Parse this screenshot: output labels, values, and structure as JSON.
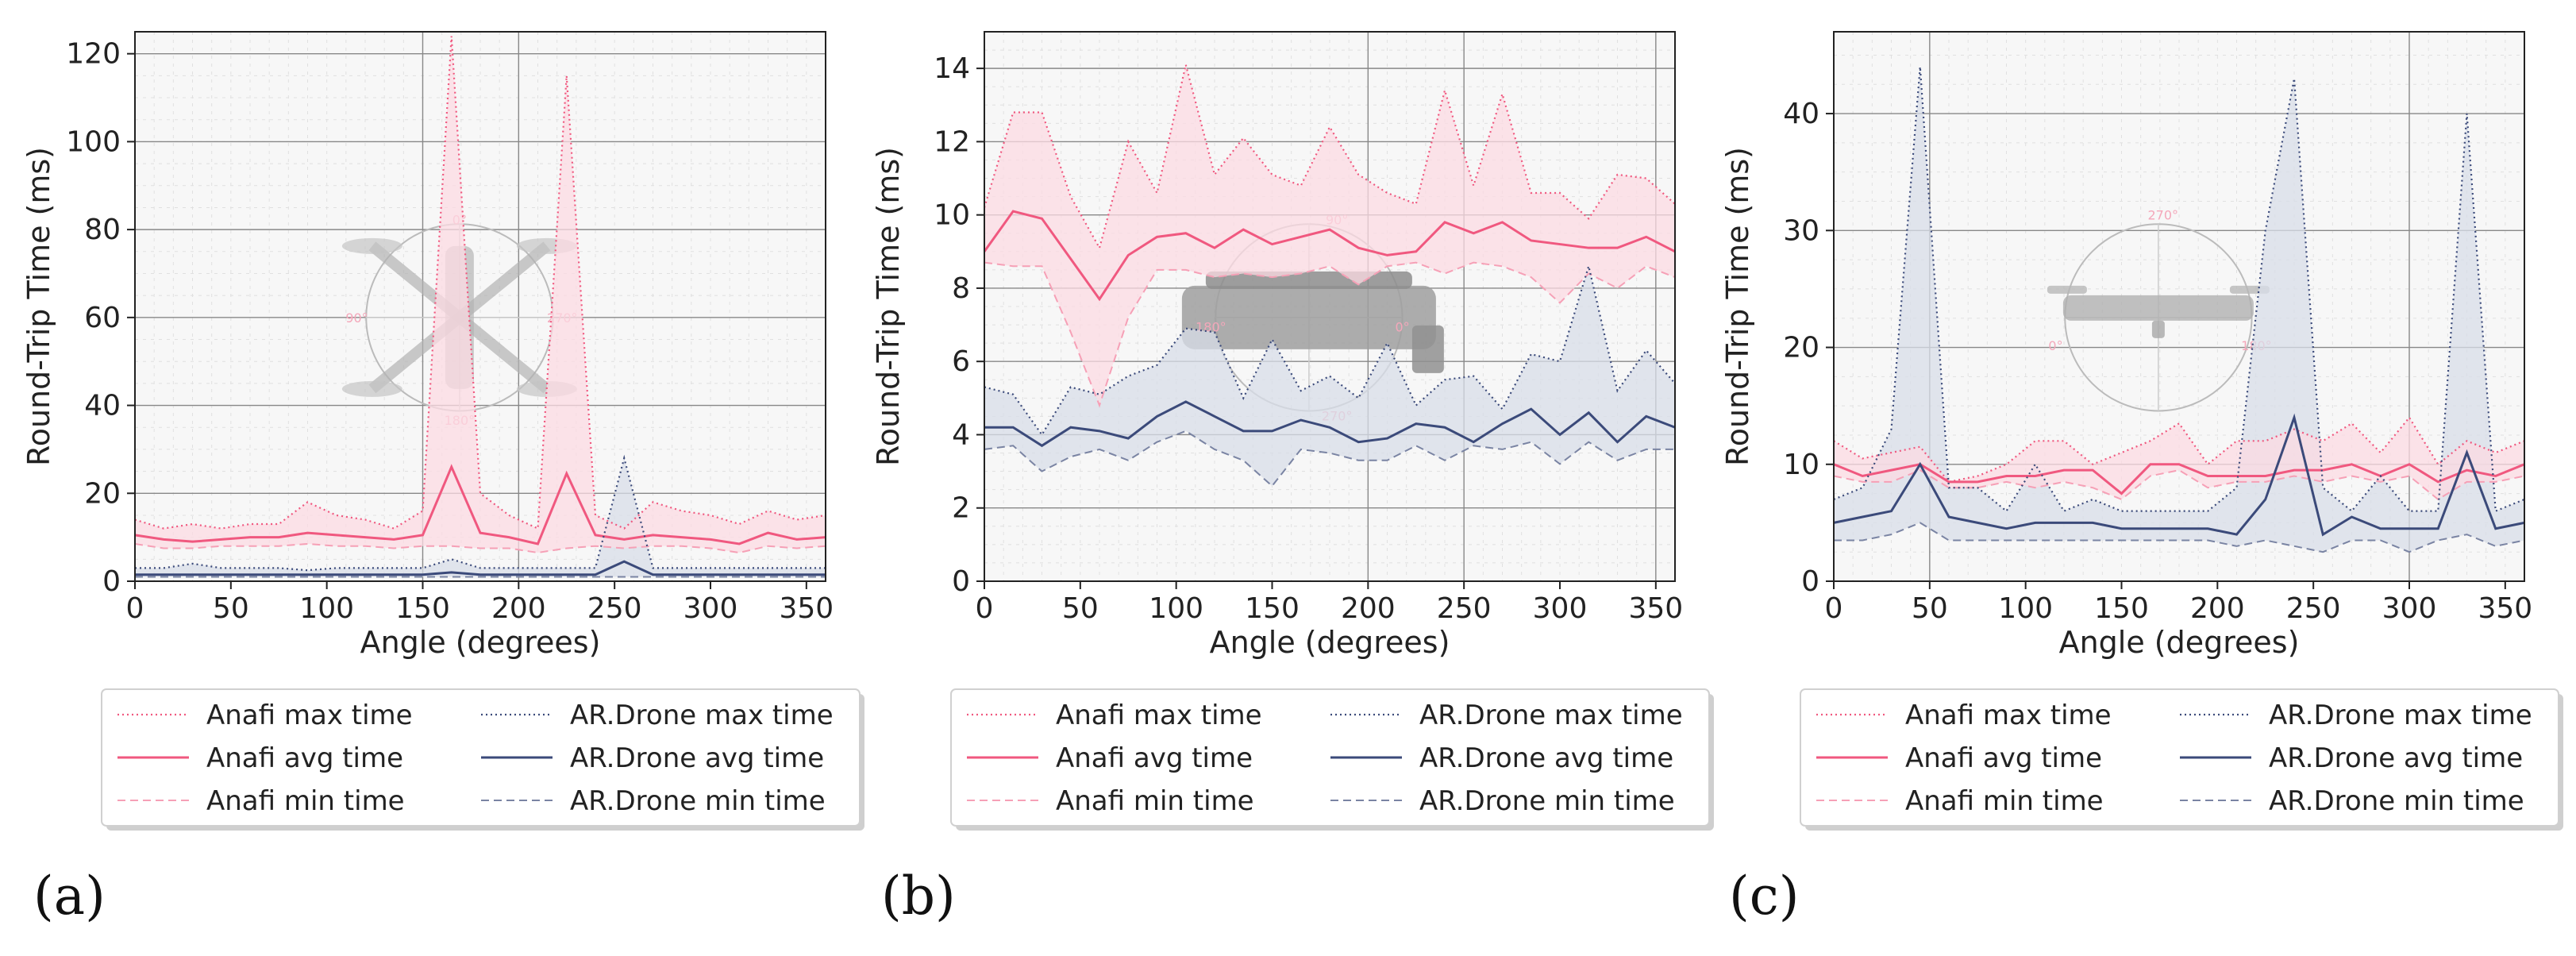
{
  "figure": {
    "panel_labels": [
      "(a)",
      "(b)",
      "(c)"
    ],
    "legend_labels": {
      "anafi_max": "Anafi max time",
      "anafi_avg": "Anafi avg time",
      "anafi_min": "Anafi min time",
      "ardrone_max": "AR.Drone max time",
      "ardrone_avg": "AR.Drone avg time",
      "ardrone_min": "AR.Drone min time"
    },
    "colors": {
      "anafi": "#f0587f",
      "anafi_fill": "#fcdbe3",
      "ardrone": "#3b4a7a",
      "ardrone_fill": "#d8dde8",
      "plot_bg": "#f7f7f7"
    },
    "inset_marks": {
      "a": [
        "0°",
        "90°",
        "270°",
        "180°"
      ],
      "b": [
        "90°",
        "180°",
        "0°",
        "270°"
      ],
      "c": [
        "270°",
        "0°",
        "180°"
      ]
    }
  },
  "chart_data": [
    {
      "type": "line",
      "panel": "(a)",
      "xlabel": "Angle (degrees)",
      "ylabel": "Round-Trip Time (ms)",
      "xlim": [
        0,
        360
      ],
      "ylim": [
        0,
        125
      ],
      "xticks": [
        0,
        50,
        100,
        150,
        200,
        250,
        300,
        350
      ],
      "yticks": [
        0,
        20,
        40,
        60,
        80,
        100,
        120
      ],
      "x": [
        0,
        15,
        30,
        45,
        60,
        75,
        90,
        105,
        120,
        135,
        150,
        165,
        180,
        195,
        210,
        225,
        240,
        255,
        270,
        285,
        300,
        315,
        330,
        345,
        360
      ],
      "series": [
        {
          "name": "Anafi max time",
          "values": [
            14,
            12,
            13,
            12,
            13,
            13,
            18,
            15,
            14,
            12,
            16,
            124,
            20,
            15,
            12,
            115,
            15,
            12,
            18,
            16,
            15,
            13,
            16,
            14,
            15
          ]
        },
        {
          "name": "Anafi avg time",
          "values": [
            10.5,
            9.5,
            9,
            9.5,
            10,
            10,
            11,
            10.5,
            10,
            9.5,
            10.5,
            26,
            11,
            10,
            8.5,
            24.5,
            10.5,
            9.5,
            10.5,
            10,
            9.5,
            8.5,
            11,
            9.5,
            10
          ]
        },
        {
          "name": "Anafi min time",
          "values": [
            8.5,
            7.5,
            7.5,
            8,
            8,
            8,
            8.5,
            8,
            8,
            7.5,
            8,
            8,
            7.5,
            7.5,
            6.5,
            7.5,
            8,
            7.5,
            8,
            8,
            7.5,
            6.5,
            8,
            7.5,
            8
          ]
        },
        {
          "name": "AR.Drone max time",
          "values": [
            3,
            3,
            4,
            3,
            3,
            3,
            2.5,
            3,
            3,
            3,
            3,
            5,
            3,
            3,
            3,
            3,
            3,
            28,
            3,
            3,
            3,
            3,
            3,
            3,
            3
          ]
        },
        {
          "name": "AR.Drone avg time",
          "values": [
            1.5,
            1.5,
            1.5,
            1.5,
            1.5,
            1.5,
            1.5,
            1.5,
            1.5,
            1.5,
            1.5,
            2,
            1.5,
            1.5,
            1.5,
            1.5,
            1.5,
            4.5,
            1.5,
            1.5,
            1.5,
            1.5,
            1.5,
            1.5,
            1.5
          ]
        },
        {
          "name": "AR.Drone min time",
          "values": [
            1,
            1,
            1,
            1,
            1,
            1,
            1,
            1,
            1,
            1,
            1,
            1,
            1,
            1,
            1,
            1,
            1,
            1,
            1,
            1,
            1,
            1,
            1,
            1,
            1
          ]
        }
      ]
    },
    {
      "type": "line",
      "panel": "(b)",
      "xlabel": "Angle (degrees)",
      "ylabel": "Round-Trip Time (ms)",
      "xlim": [
        0,
        360
      ],
      "ylim": [
        0,
        15
      ],
      "xticks": [
        0,
        50,
        100,
        150,
        200,
        250,
        300,
        350
      ],
      "yticks": [
        0,
        2,
        4,
        6,
        8,
        10,
        12,
        14
      ],
      "x": [
        0,
        15,
        30,
        45,
        60,
        75,
        90,
        105,
        120,
        135,
        150,
        165,
        180,
        195,
        210,
        225,
        240,
        255,
        270,
        285,
        300,
        315,
        330,
        345,
        360
      ],
      "series": [
        {
          "name": "Anafi max time",
          "values": [
            10.2,
            12.8,
            12.8,
            10.5,
            9.1,
            12,
            10.6,
            14.1,
            11.1,
            12.1,
            11.1,
            10.8,
            12.4,
            11.1,
            10.6,
            10.3,
            13.4,
            10.8,
            13.3,
            10.6,
            10.6,
            9.9,
            11.1,
            11,
            10.3
          ]
        },
        {
          "name": "Anafi avg time",
          "values": [
            9,
            10.1,
            9.9,
            8.8,
            7.7,
            8.9,
            9.4,
            9.5,
            9.1,
            9.6,
            9.2,
            9.4,
            9.6,
            9.1,
            8.9,
            9,
            9.8,
            9.5,
            9.8,
            9.3,
            9.2,
            9.1,
            9.1,
            9.4,
            9
          ]
        },
        {
          "name": "Anafi min time",
          "values": [
            8.7,
            8.6,
            8.6,
            6.8,
            4.8,
            7.2,
            8.5,
            8.5,
            8.3,
            8.4,
            8.3,
            8.4,
            8.6,
            8.1,
            8.6,
            8.7,
            8.4,
            8.7,
            8.6,
            8.3,
            7.6,
            8.4,
            8,
            8.6,
            8.3
          ]
        },
        {
          "name": "AR.Drone max time",
          "values": [
            5.3,
            5.1,
            4,
            5.3,
            5.1,
            5.6,
            5.9,
            6.9,
            6.8,
            5,
            6.6,
            5.2,
            5.6,
            5,
            6.5,
            4.8,
            5.5,
            5.6,
            4.7,
            6.2,
            6,
            8.6,
            5.2,
            6.3,
            5.4
          ]
        },
        {
          "name": "AR.Drone avg time",
          "values": [
            4.2,
            4.2,
            3.7,
            4.2,
            4.1,
            3.9,
            4.5,
            4.9,
            4.5,
            4.1,
            4.1,
            4.4,
            4.2,
            3.8,
            3.9,
            4.3,
            4.2,
            3.8,
            4.3,
            4.7,
            4,
            4.6,
            3.8,
            4.5,
            4.2
          ]
        },
        {
          "name": "AR.Drone min time",
          "values": [
            3.6,
            3.7,
            3,
            3.4,
            3.6,
            3.3,
            3.8,
            4.1,
            3.6,
            3.3,
            2.6,
            3.6,
            3.5,
            3.3,
            3.3,
            3.7,
            3.3,
            3.7,
            3.6,
            3.8,
            3.2,
            3.8,
            3.3,
            3.6,
            3.6
          ]
        }
      ]
    },
    {
      "type": "line",
      "panel": "(c)",
      "xlabel": "Angle (degrees)",
      "ylabel": "Round-Trip Time (ms)",
      "xlim": [
        0,
        360
      ],
      "ylim": [
        0,
        47
      ],
      "xticks": [
        0,
        50,
        100,
        150,
        200,
        250,
        300,
        350
      ],
      "yticks": [
        0,
        10,
        20,
        30,
        40
      ],
      "x": [
        0,
        15,
        30,
        45,
        60,
        75,
        90,
        105,
        120,
        135,
        150,
        165,
        180,
        195,
        210,
        225,
        240,
        255,
        270,
        285,
        300,
        315,
        330,
        345,
        360
      ],
      "series": [
        {
          "name": "Anafi max time",
          "values": [
            12,
            10.5,
            11,
            11.5,
            8.5,
            9,
            10,
            12,
            12,
            10,
            11,
            12,
            13.5,
            10,
            12,
            12,
            13,
            12,
            13.5,
            11,
            14,
            10,
            12,
            11,
            12
          ]
        },
        {
          "name": "Anafi avg time",
          "values": [
            10,
            9,
            9.5,
            10,
            8.5,
            8.5,
            9,
            9,
            9.5,
            9.5,
            7.5,
            10,
            10,
            9,
            9,
            9,
            9.5,
            9.5,
            10,
            9,
            10,
            8.5,
            9.5,
            9,
            10
          ]
        },
        {
          "name": "Anafi min time",
          "values": [
            9,
            8.5,
            8.5,
            9.5,
            8,
            8,
            8.5,
            8,
            8.5,
            8,
            7,
            9,
            9.5,
            8,
            8.5,
            8.5,
            9,
            8.5,
            9,
            8.5,
            9,
            7,
            8.5,
            8.5,
            9
          ]
        },
        {
          "name": "AR.Drone max time",
          "values": [
            7,
            8,
            13,
            44,
            8,
            8,
            6,
            10,
            6,
            7,
            6,
            6,
            6,
            6,
            8,
            30,
            43,
            8,
            6,
            9,
            6,
            6,
            40,
            6,
            7
          ]
        },
        {
          "name": "AR.Drone avg time",
          "values": [
            5,
            5.5,
            6,
            10,
            5.5,
            5,
            4.5,
            5,
            5,
            5,
            4.5,
            4.5,
            4.5,
            4.5,
            4,
            7,
            14,
            4,
            5.5,
            4.5,
            4.5,
            4.5,
            11,
            4.5,
            5
          ]
        },
        {
          "name": "AR.Drone min time",
          "values": [
            3.5,
            3.5,
            4,
            5,
            3.5,
            3.5,
            3.5,
            3.5,
            3.5,
            3.5,
            3.5,
            3.5,
            3.5,
            3.5,
            3,
            3.5,
            3,
            2.5,
            3.5,
            3.5,
            2.5,
            3.5,
            4,
            3,
            3.5
          ]
        }
      ]
    }
  ]
}
